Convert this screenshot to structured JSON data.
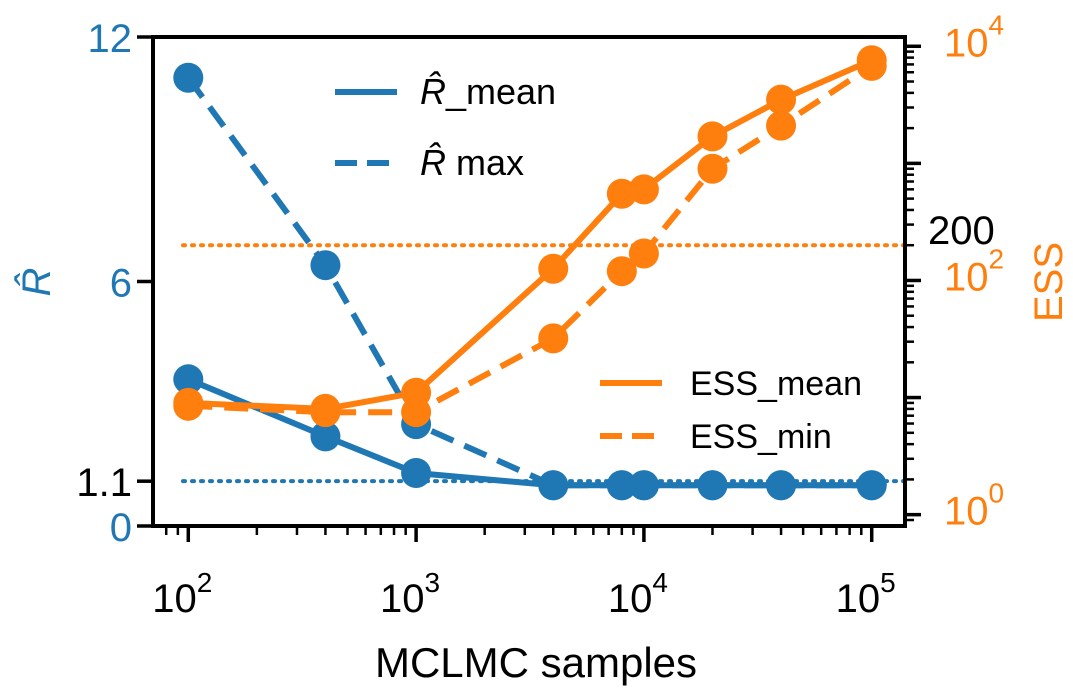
{
  "chart_data": {
    "type": "line",
    "xlabel": "MCLMC samples",
    "xscale": "log",
    "xlim": [
      70,
      140000
    ],
    "x_ticks": [
      {
        "value": 100,
        "base": "10",
        "exp": "2"
      },
      {
        "value": 1000,
        "base": "10",
        "exp": "3"
      },
      {
        "value": 10000,
        "base": "10",
        "exp": "4"
      },
      {
        "value": 100000,
        "base": "10",
        "exp": "5"
      }
    ],
    "left_axis": {
      "label": "R̂",
      "ylim": [
        0,
        12
      ],
      "ticks": [
        {
          "value": 0,
          "label": "0",
          "color": "#1f77b4"
        },
        {
          "value": 1.1,
          "label": "1.1",
          "color": "#000000"
        },
        {
          "value": 6,
          "label": "6",
          "color": "#1f77b4"
        },
        {
          "value": 12,
          "label": "12",
          "color": "#1f77b4"
        }
      ],
      "color": "#1f77b4"
    },
    "right_axis": {
      "label": "ESS",
      "scale": "log",
      "ylim": [
        0.8,
        12000
      ],
      "ticks": [
        {
          "value": 1,
          "base": "10",
          "exp": "0"
        },
        {
          "value": 100,
          "base": "10",
          "exp": "2"
        },
        {
          "value": 10000,
          "base": "10",
          "exp": "4"
        }
      ],
      "annotation": "200",
      "color": "#ff7f0e"
    },
    "x": [
      100,
      400,
      1000,
      4000,
      8000,
      10000,
      20000,
      40000,
      100000
    ],
    "series": [
      {
        "name": "R̂_mean",
        "axis": "left",
        "style": "solid",
        "color": "#1f77b4",
        "values": [
          3.6,
          2.2,
          1.3,
          1.0,
          1.0,
          1.0,
          1.0,
          1.0,
          1.0
        ]
      },
      {
        "name": "R̂  max",
        "axis": "left",
        "style": "dashed",
        "color": "#1f77b4",
        "values": [
          11.0,
          6.4,
          2.5,
          1.0,
          1.0,
          1.0,
          1.0,
          1.0,
          1.0
        ]
      },
      {
        "name": "ESS_mean",
        "axis": "right",
        "style": "solid",
        "color": "#ff7f0e",
        "values": [
          9,
          8,
          11,
          126,
          550,
          600,
          1700,
          3500,
          7600
        ]
      },
      {
        "name": "ESS_min",
        "axis": "right",
        "style": "dashed",
        "color": "#ff7f0e",
        "values": [
          8.5,
          7.5,
          7.5,
          32,
          120,
          170,
          900,
          2100,
          6800
        ]
      }
    ],
    "reference_lines": [
      {
        "axis": "left",
        "value": 1.1,
        "style": "dotted",
        "color": "#1f77b4"
      },
      {
        "axis": "right",
        "value": 200,
        "style": "dotted",
        "color": "#ff7f0e"
      }
    ],
    "legends": [
      {
        "placement": "upper-center",
        "entries": [
          "R̂_mean",
          "R̂  max"
        ]
      },
      {
        "placement": "lower-right",
        "entries": [
          "ESS_mean",
          "ESS_min"
        ]
      }
    ]
  }
}
